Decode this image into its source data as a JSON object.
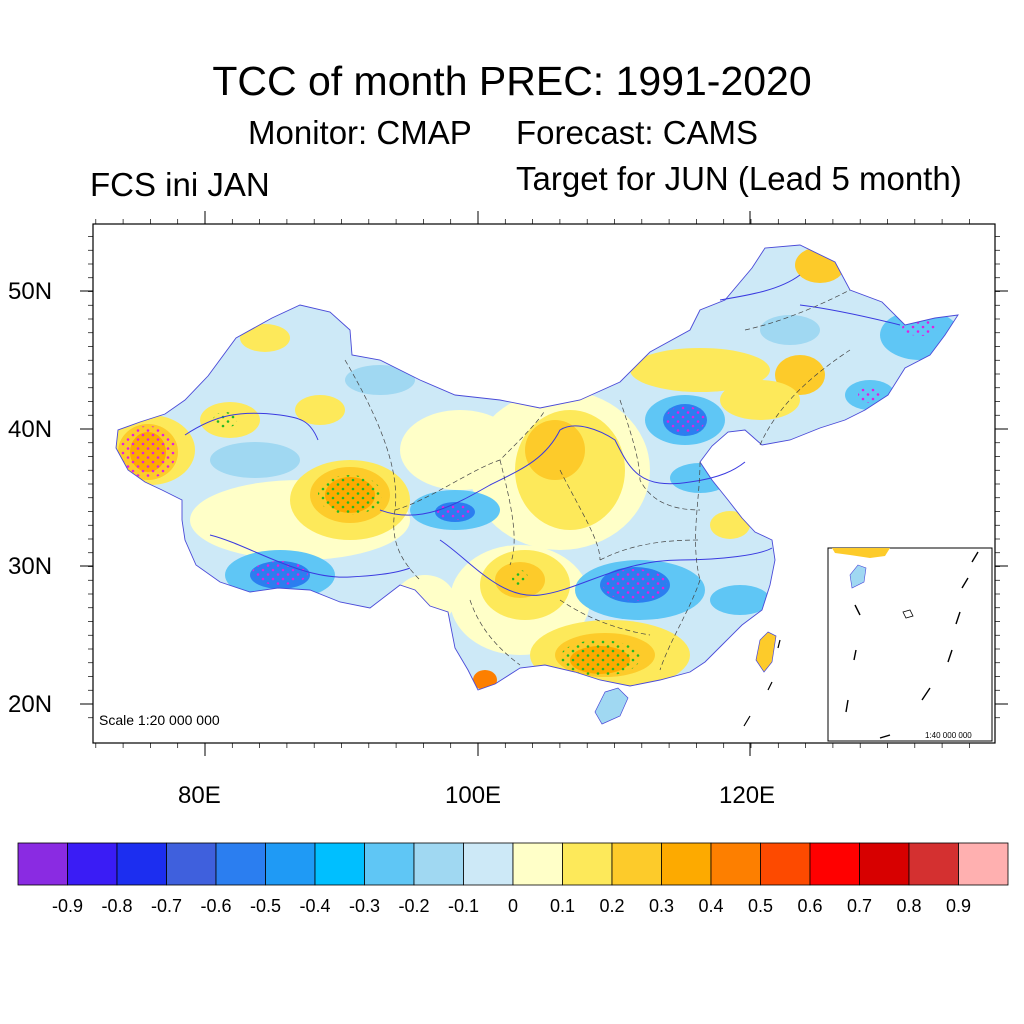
{
  "title": "TCC of month PREC: 1991-2020",
  "subtitle_monitor": "Monitor: CMAP",
  "subtitle_forecast": "Forecast: CAMS",
  "subtitle_init": "FCS ini JAN",
  "subtitle_target": "Target for JUN (Lead 5 month)",
  "map": {
    "lat_labels": [
      "50N",
      "40N",
      "30N",
      "20N"
    ],
    "lon_labels": [
      "80E",
      "100E",
      "120E"
    ],
    "scale_main": "Scale 1:20 000 000",
    "scale_inset": "1:40 000 000"
  },
  "colorbar": {
    "colors": [
      "#8a2be2",
      "#3a1cf5",
      "#1c2ef0",
      "#3f60dd",
      "#2b7ef0",
      "#1f9af5",
      "#00bfff",
      "#5fc6f5",
      "#a0d8f2",
      "#cde9f7",
      "#ffffc8",
      "#fde95a",
      "#fdcb2a",
      "#fdaa00",
      "#fd7f00",
      "#fd4a00",
      "#ff0000",
      "#d70000",
      "#d43030",
      "#ffb0b0"
    ],
    "labels": [
      "-0.9",
      "-0.8",
      "-0.7",
      "-0.6",
      "-0.5",
      "-0.4",
      "-0.3",
      "-0.2",
      "-0.1",
      "0",
      "0.1",
      "0.2",
      "0.3",
      "0.4",
      "0.5",
      "0.6",
      "0.7",
      "0.8",
      "0.9"
    ]
  }
}
